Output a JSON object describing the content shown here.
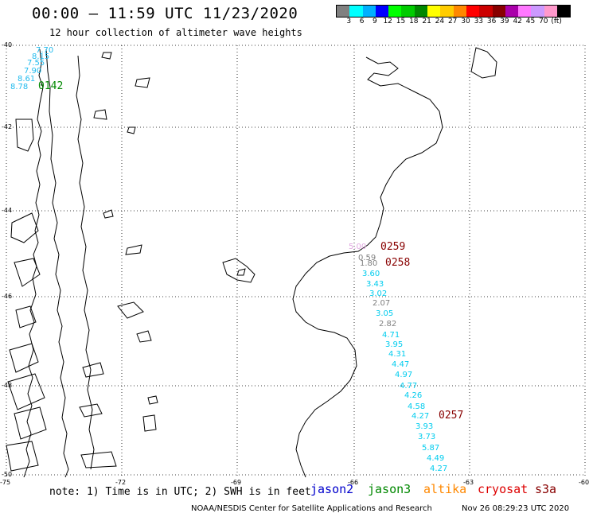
{
  "header": {
    "title": "00:00 – 11:59 UTC 11/23/2020",
    "subtitle": "12 hour collection of altimeter wave heights"
  },
  "colorbar": {
    "colors": [
      "#808080",
      "#00ffff",
      "#00b0ff",
      "#0000ff",
      "#00ff00",
      "#00cc00",
      "#008800",
      "#ffff00",
      "#ffcc00",
      "#ff8800",
      "#ff0000",
      "#cc0000",
      "#880000",
      "#aa00aa",
      "#ff77ff",
      "#cc99ff",
      "#ff99cc",
      "#000000"
    ],
    "labels": [
      "3",
      "6",
      "9",
      "12",
      "15",
      "18",
      "21",
      "24",
      "27",
      "30",
      "33",
      "36",
      "39",
      "42",
      "45",
      "70",
      "(ft)"
    ]
  },
  "axes": {
    "lat_labels": [
      "-40",
      "-42",
      "-44",
      "-46",
      "-48",
      "-50"
    ],
    "lon_labels": [
      "-75",
      "-72",
      "-69",
      "-66",
      "-63",
      "-60"
    ]
  },
  "tracks": {
    "top_left": {
      "time": "0142",
      "time_color": "#008800",
      "values": [
        "7.70",
        "8.15",
        "7.55",
        "7.90",
        "8.61",
        "8.78"
      ],
      "value_color": "#22bbee"
    },
    "right": {
      "times": [
        {
          "label": "0259",
          "color": "#880000"
        },
        {
          "label": "0258",
          "color": "#880000"
        },
        {
          "label": "0257",
          "color": "#880000"
        }
      ],
      "values": [
        {
          "v": "5.00",
          "c": "#e0a8e0"
        },
        {
          "v": "0.59",
          "c": "#808080"
        },
        {
          "v": "1.80",
          "c": "#808080"
        },
        {
          "v": "3.60",
          "c": "#00ccee"
        },
        {
          "v": "3.43",
          "c": "#00ccee"
        },
        {
          "v": "3.02",
          "c": "#00ccee"
        },
        {
          "v": "2.07",
          "c": "#808080"
        },
        {
          "v": "3.05",
          "c": "#00ccee"
        },
        {
          "v": "2.82",
          "c": "#808080"
        },
        {
          "v": "4.71",
          "c": "#00ccee"
        },
        {
          "v": "3.95",
          "c": "#00ccee"
        },
        {
          "v": "4.31",
          "c": "#00ccee"
        },
        {
          "v": "4.47",
          "c": "#00ccee"
        },
        {
          "v": "4.97",
          "c": "#00ccee"
        },
        {
          "v": "4.77",
          "c": "#00ccee"
        },
        {
          "v": "4.26",
          "c": "#00ccee"
        },
        {
          "v": "4.58",
          "c": "#00ccee"
        },
        {
          "v": "4.27",
          "c": "#00ccee"
        },
        {
          "v": "3.93",
          "c": "#00ccee"
        },
        {
          "v": "3.73",
          "c": "#00ccee"
        },
        {
          "v": "5.87",
          "c": "#00ccee"
        },
        {
          "v": "4.49",
          "c": "#00ccee"
        },
        {
          "v": "4.27",
          "c": "#00ccee"
        }
      ]
    }
  },
  "footer": {
    "note": "note: 1) Time is in UTC; 2) SWH is in feet",
    "legend": [
      {
        "name": "jason2",
        "color": "#0000cc"
      },
      {
        "name": "jason3",
        "color": "#008800"
      },
      {
        "name": "altika",
        "color": "#ff8800"
      },
      {
        "name": "cryosat",
        "color": "#dd0000"
      },
      {
        "name": "s3a",
        "color": "#880000"
      }
    ],
    "credit": "NOAA/NESDIS Center for Satellite Applications and Research",
    "timestamp": "Nov 26 08:29:23 UTC 2020"
  }
}
